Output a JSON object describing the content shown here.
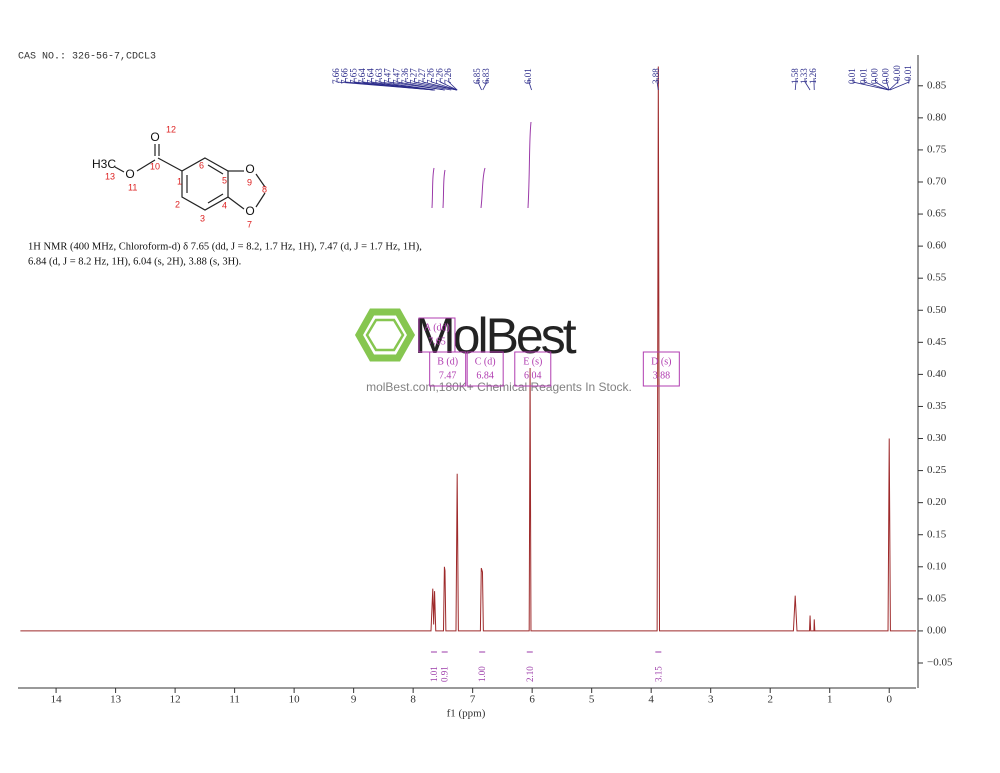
{
  "header": {
    "cas": "CAS NO.: 326-56-7,CDCL3"
  },
  "structure": {
    "symbols": [
      "O",
      "O",
      "H3C",
      "O",
      "O"
    ],
    "numbers": [
      "12",
      "10",
      "11",
      "13",
      "1",
      "2",
      "3",
      "4",
      "5",
      "6",
      "7",
      "8",
      "9"
    ]
  },
  "description": [
    "1H NMR (400 MHz, Chloroform-d) δ 7.65 (dd, J = 8.2, 1.7 Hz, 1H), 7.47 (d, J = 1.7 Hz, 1H),",
    "6.84 (d, J = 8.2 Hz, 1H), 6.04 (s, 2H), 3.88 (s, 3H)."
  ],
  "watermark": {
    "brand": "MolBest",
    "tagline": "molBest.com,180K+ Chemical Reagents In Stock."
  },
  "chart_data": {
    "type": "line",
    "x_label": "f1 (ppm)",
    "color": "#9e2a2b",
    "x": [
      14.6,
      7.7,
      7.67,
      7.655,
      7.64,
      7.62,
      7.49,
      7.475,
      7.465,
      7.45,
      7.28,
      7.26,
      7.24,
      6.87,
      6.855,
      6.835,
      6.82,
      6.05,
      6.035,
      6.02,
      3.9,
      3.88,
      3.86,
      1.61,
      1.58,
      1.55,
      1.34,
      1.33,
      1.32,
      1.265,
      1.26,
      1.25,
      0.02,
      0,
      -0.02,
      -0.45
    ],
    "values": [
      0,
      0,
      0.066,
      0.01,
      0.062,
      0,
      0,
      0.1,
      0.094,
      0,
      0,
      0.245,
      0,
      0,
      0.098,
      0.092,
      0,
      0,
      0.41,
      0,
      0,
      0.88,
      0,
      0,
      0.055,
      0,
      0,
      0.024,
      0,
      0,
      0.018,
      0,
      0,
      0.3,
      0,
      0
    ],
    "xlim": [
      14.64,
      -0.45
    ],
    "xticks": [
      14,
      13,
      12,
      11,
      10,
      9,
      8,
      7,
      6,
      5,
      4,
      3,
      2,
      1,
      0
    ],
    "ylim": [
      -0.089,
      0.898
    ],
    "yticks": [
      {
        "value": -0.05,
        "label": "−0.05"
      },
      {
        "value": 0,
        "label": "0.00"
      },
      0.05,
      {
        "value": 0.1,
        "label": "0.10"
      },
      0.15,
      {
        "value": 0.2,
        "label": "0.20"
      },
      0.25,
      {
        "value": 0.3,
        "label": "0.30"
      },
      0.35,
      {
        "value": 0.4,
        "label": "0.40"
      },
      0.45,
      {
        "value": 0.5,
        "label": "0.50"
      },
      0.55,
      {
        "value": 0.6,
        "label": "0.60"
      },
      0.65,
      {
        "value": 0.7,
        "label": "0.70"
      },
      0.75,
      {
        "value": 0.8,
        "label": "0.80"
      },
      0.85
    ],
    "peak_labels": [
      7.66,
      7.66,
      7.65,
      7.64,
      7.64,
      7.63,
      7.47,
      7.47,
      7.36,
      7.27,
      7.27,
      7.26,
      7.26,
      7.26,
      6.85,
      6.83,
      6.01,
      3.88,
      1.58,
      1.33,
      1.26,
      0.01,
      0.01,
      {
        "value": 0,
        "label": "0.00"
      },
      {
        "value": 0,
        "label": "0.00"
      },
      {
        "value": 0,
        "label": "-0.00"
      },
      -0.01
    ],
    "integrals": {
      "positions": [
        7.65,
        7.47,
        6.84,
        6.04,
        3.88
      ],
      "values": [
        1.01,
        0.91,
        1.0,
        2.1,
        3.15
      ],
      "value_labels": [
        "1.01",
        "0.91",
        "1.00",
        "2.10",
        "3.15"
      ]
    },
    "multiplets": [
      {
        "label": "A (dd)",
        "shift": 7.65
      },
      {
        "label": "B (d)",
        "shift": 7.47
      },
      {
        "label": "C (d)",
        "shift": 6.84
      },
      {
        "label": "E (s)",
        "shift": 6.04
      },
      {
        "label": "D (s)",
        "shift": 3.88
      }
    ]
  }
}
